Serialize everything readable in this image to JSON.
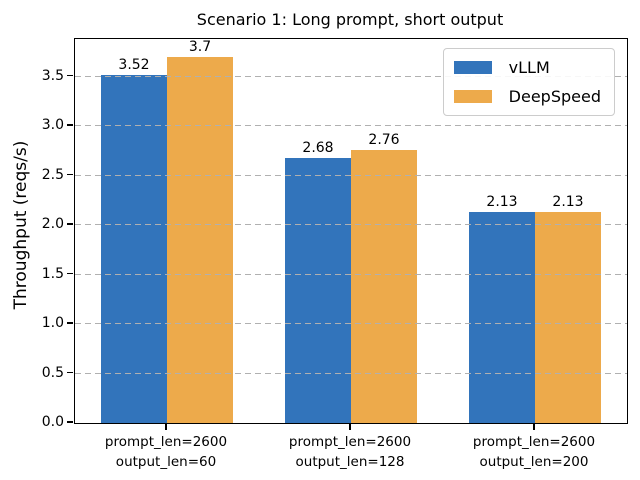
{
  "chart_data": {
    "type": "bar",
    "title": "Scenario 1: Long prompt, short output",
    "xlabel": "",
    "ylabel": "Throughput (reqs/s)",
    "categories": [
      [
        "prompt_len=2600",
        "output_len=60"
      ],
      [
        "prompt_len=2600",
        "output_len=128"
      ],
      [
        "prompt_len=2600",
        "output_len=200"
      ]
    ],
    "series": [
      {
        "name": "vLLM",
        "color": "#3274bb",
        "values": [
          3.52,
          2.68,
          2.13
        ],
        "labels": [
          "3.52",
          "2.68",
          "2.13"
        ]
      },
      {
        "name": "DeepSpeed",
        "color": "#edaa4b",
        "values": [
          3.7,
          2.76,
          2.13
        ],
        "labels": [
          "3.7",
          "2.76",
          "2.13"
        ]
      }
    ],
    "ytick_values": [
      0,
      0.5,
      1,
      1.5,
      2,
      2.5,
      3,
      3.5
    ],
    "ytick_labels": [
      "0.0",
      "0.5",
      "1.0",
      "1.5",
      "2.0",
      "2.5",
      "3.0",
      "3.5"
    ],
    "ylim": [
      0,
      3.88
    ],
    "grid": "horizontal dashed, drawn above bars",
    "grid_color": "#b0b0b0",
    "legend_position": "upper right",
    "background_color": "#ffffff"
  }
}
